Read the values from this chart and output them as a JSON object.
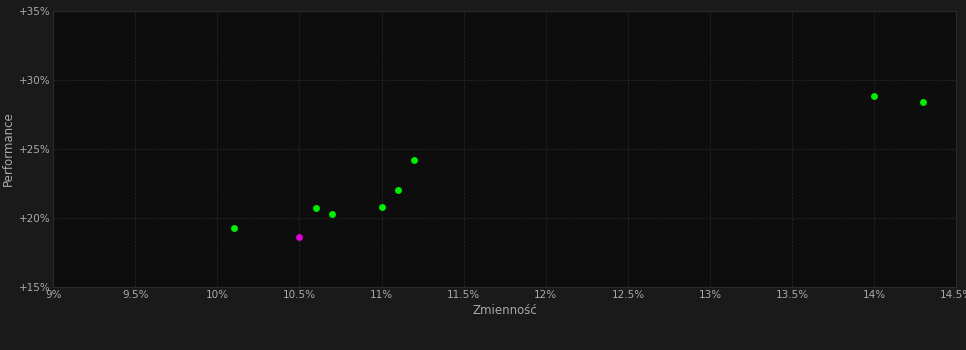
{
  "background_color": "#1a1a1a",
  "plot_bg_color": "#0d0d0d",
  "grid_color": "#2a2a2a",
  "text_color": "#aaaaaa",
  "xlabel": "Zmienność",
  "ylabel": "Performance",
  "xlim": [
    0.09,
    0.145
  ],
  "ylim": [
    0.15,
    0.35
  ],
  "xticks": [
    0.09,
    0.095,
    0.1,
    0.105,
    0.11,
    0.115,
    0.12,
    0.125,
    0.13,
    0.135,
    0.14,
    0.145
  ],
  "xtick_labels": [
    "9%",
    "9.5%",
    "10%",
    "10.5%",
    "11%",
    "11.5%",
    "12%",
    "12.5%",
    "13%",
    "13.5%",
    "14%",
    "14.5%"
  ],
  "yticks": [
    0.15,
    0.2,
    0.25,
    0.3,
    0.35
  ],
  "ytick_labels": [
    "+15%",
    "+20%",
    "+25%",
    "+30%",
    "+35%"
  ],
  "green_points": [
    [
      0.101,
      0.193
    ],
    [
      0.106,
      0.207
    ],
    [
      0.107,
      0.203
    ],
    [
      0.11,
      0.208
    ],
    [
      0.111,
      0.22
    ],
    [
      0.112,
      0.242
    ],
    [
      0.14,
      0.288
    ],
    [
      0.143,
      0.284
    ]
  ],
  "magenta_points": [
    [
      0.105,
      0.186
    ]
  ],
  "green_color": "#00ee00",
  "magenta_color": "#dd00dd",
  "marker_size": 5
}
